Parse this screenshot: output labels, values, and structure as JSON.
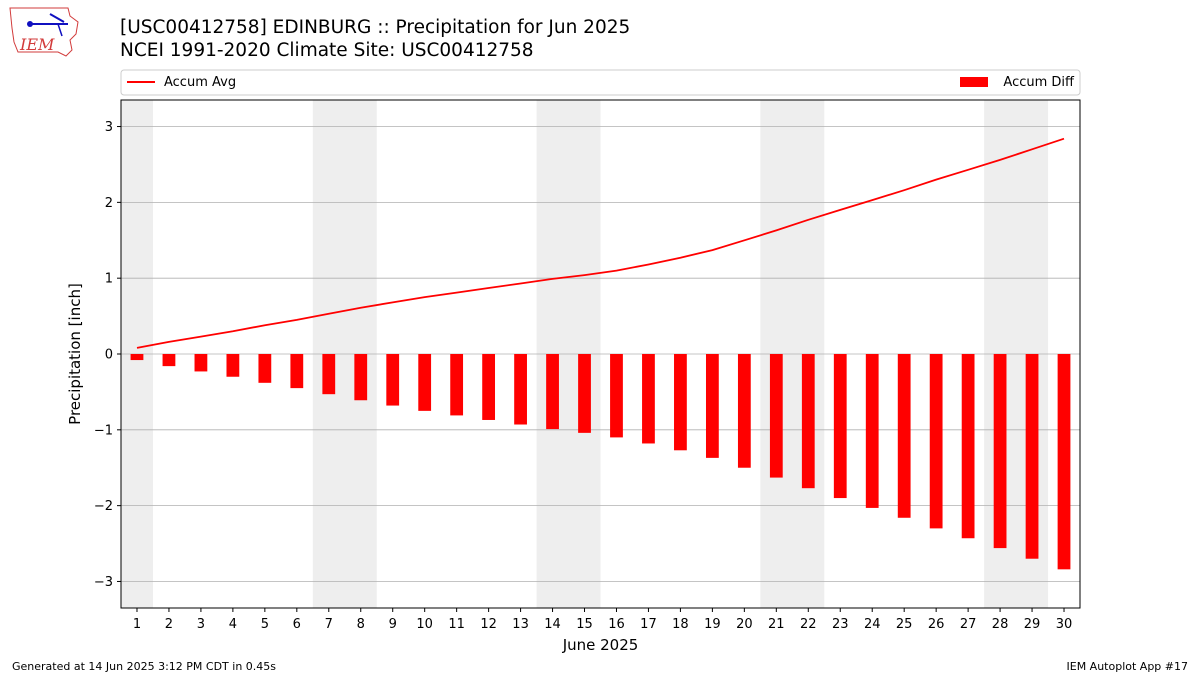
{
  "header": {
    "title_line1": "[USC00412758] EDINBURG :: Precipitation for Jun 2025",
    "title_line2": "NCEI 1991-2020 Climate Site: USC00412758"
  },
  "logo": {
    "text": "IEM",
    "icon": "iem-state-logo-icon"
  },
  "footer": {
    "left": "Generated at 14 Jun 2025 3:12 PM CDT in 0.45s",
    "right": "IEM Autoplot App #17"
  },
  "colors": {
    "series": "#ff0000",
    "weekend": "#eeeeee",
    "grid": "#b0b0b0"
  },
  "chart_data": {
    "type": "bar",
    "xlabel": "June 2025",
    "ylabel": "Precipitation [inch]",
    "ylim": [
      -3.35,
      3.35
    ],
    "yticks": [
      -3,
      -2,
      -1,
      0,
      1,
      2,
      3
    ],
    "ytick_labels": [
      "−3",
      "−2",
      "−1",
      "0",
      "1",
      "2",
      "3"
    ],
    "xlim": [
      0.5,
      30.5
    ],
    "grid": "horizontal",
    "legend": {
      "left": "Accum Avg",
      "right": "Accum Diff",
      "placement": "top"
    },
    "categories": [
      "1",
      "2",
      "3",
      "4",
      "5",
      "6",
      "7",
      "8",
      "9",
      "10",
      "11",
      "12",
      "13",
      "14",
      "15",
      "16",
      "17",
      "18",
      "19",
      "20",
      "21",
      "22",
      "23",
      "24",
      "25",
      "26",
      "27",
      "28",
      "29",
      "30"
    ],
    "weekend_spans": [
      [
        0.5,
        1.5
      ],
      [
        6.5,
        8.5
      ],
      [
        13.5,
        15.5
      ],
      [
        20.5,
        22.5
      ],
      [
        27.5,
        29.5
      ]
    ],
    "series": [
      {
        "name": "Accum Avg",
        "type": "line",
        "values": [
          0.08,
          0.16,
          0.23,
          0.3,
          0.38,
          0.45,
          0.53,
          0.61,
          0.68,
          0.75,
          0.81,
          0.87,
          0.93,
          0.99,
          1.04,
          1.1,
          1.18,
          1.27,
          1.37,
          1.5,
          1.63,
          1.77,
          1.9,
          2.03,
          2.16,
          2.3,
          2.43,
          2.56,
          2.7,
          2.84
        ]
      },
      {
        "name": "Accum Diff",
        "type": "bar",
        "values": [
          -0.08,
          -0.16,
          -0.23,
          -0.3,
          -0.38,
          -0.45,
          -0.53,
          -0.61,
          -0.68,
          -0.75,
          -0.81,
          -0.87,
          -0.93,
          -0.99,
          -1.04,
          -1.1,
          -1.18,
          -1.27,
          -1.37,
          -1.5,
          -1.63,
          -1.77,
          -1.9,
          -2.03,
          -2.16,
          -2.3,
          -2.43,
          -2.56,
          -2.7,
          -2.84
        ]
      }
    ]
  }
}
